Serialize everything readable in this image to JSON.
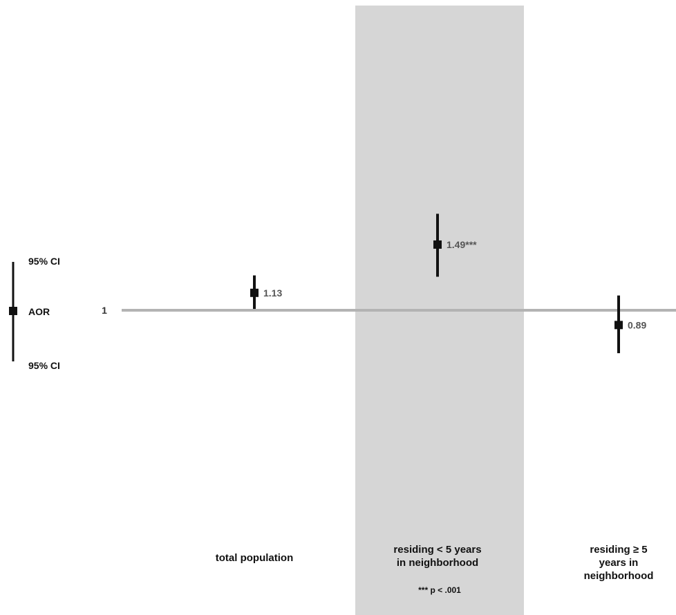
{
  "chart_data": {
    "type": "forest",
    "title": "",
    "xlabel": "",
    "ylabel": "",
    "reference_line": {
      "value": 1,
      "label": "1"
    },
    "highlight_category": "residing < 5 years in neighborhood",
    "categories": [
      {
        "label_lines": [
          "total population"
        ],
        "aor": 1.13,
        "ci_low": 1.01,
        "ci_high": 1.26,
        "value_label": "1.13"
      },
      {
        "label_lines": [
          "residing < 5 years",
          "in neighborhood"
        ],
        "aor": 1.49,
        "ci_low": 1.25,
        "ci_high": 1.72,
        "value_label": "1.49***",
        "note": "*** p < .001"
      },
      {
        "label_lines": [
          "residing ≥ 5",
          "years  in",
          "neighborhood"
        ],
        "aor": 0.89,
        "ci_low": 0.68,
        "ci_high": 1.11,
        "value_label": "0.89"
      }
    ],
    "legend": {
      "placement": "left",
      "upper_label": "95% CI",
      "point_label": "AOR",
      "lower_label": "95% CI"
    },
    "colors": {
      "marker": "#111111",
      "reference_line": "#b3b3b3",
      "highlight_band": "#d6d6d6",
      "value_text": "#555555",
      "label_text": "#111111"
    }
  }
}
